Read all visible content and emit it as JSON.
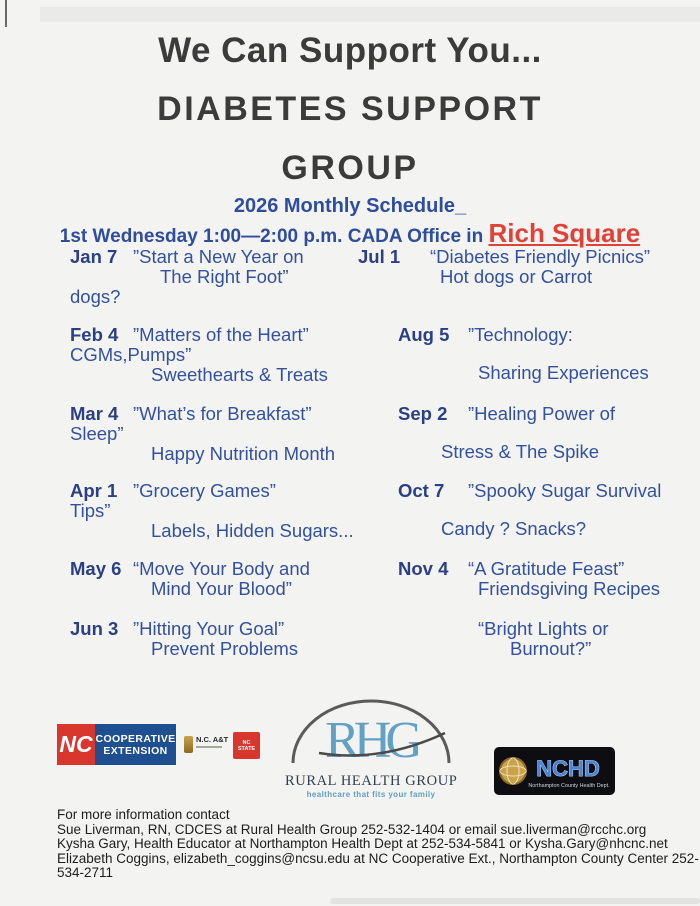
{
  "header": {
    "title_line1": "We Can Support You...",
    "title_line2": "DIABETES SUPPORT",
    "title_line3": "GROUP",
    "subtitle": "2026 Monthly Schedule_",
    "when_prefix": "1st Wednesday 1:00—2:00 p.m. CADA Office in ",
    "location": "Rich Square"
  },
  "colors": {
    "heading_text": "#3b3b3b",
    "schedule_blue": "#33519e",
    "date_blue": "#2a3f85",
    "location_red": "#df4238",
    "ncce_red": "#d9372e",
    "ncce_blue": "#1d4f91",
    "rhg_blue": "#62a0c4",
    "nchd_blue": "#4a86d8"
  },
  "schedule": {
    "left_column": [
      {
        "date": "Jan 7",
        "lines": [
          {
            "text": "”Start a New Year on",
            "style": "lead"
          },
          {
            "text": "The  Right Foot”",
            "style": "ind2"
          },
          {
            "text": "dogs?",
            "style": "hang"
          }
        ]
      },
      {
        "date": "Feb 4",
        "lines": [
          {
            "text": "”Matters of the Heart”",
            "style": "lead"
          },
          {
            "text": "CGMs,Pumps”",
            "style": "hang"
          },
          {
            "text": "Sweethearts & Treats",
            "style": "ind"
          }
        ]
      },
      {
        "date": "Mar 4",
        "lines": [
          {
            "text": "”What’s for Breakfast”",
            "style": "lead"
          },
          {
            "text": "Sleep”",
            "style": "hang"
          },
          {
            "text": "Happy Nutrition Month",
            "style": "ind"
          }
        ]
      },
      {
        "date": "Apr 1",
        "lines": [
          {
            "text": "”Grocery Games”",
            "style": "lead"
          },
          {
            "text": "Tips”",
            "style": "hang"
          },
          {
            "text": "Labels, Hidden Sugars...",
            "style": "ind"
          }
        ]
      },
      {
        "date": "May 6",
        "lines": [
          {
            "text": "“Move Your Body and",
            "style": "lead"
          },
          {
            "text": "Mind Your Blood”",
            "style": "ind"
          }
        ]
      },
      {
        "date": "Jun 3",
        "lines": [
          {
            "text": "”Hitting Your Goal”",
            "style": "lead"
          },
          {
            "text": "Prevent Problems",
            "style": "ind"
          }
        ]
      }
    ],
    "right_column": [
      {
        "date": "Jul 1",
        "lines": [
          {
            "text": "“Diabetes Friendly Picnics”",
            "style": "lead"
          },
          {
            "text": "Hot dogs or Carrot",
            "style": "ind"
          }
        ]
      },
      {
        "date": "Aug 5",
        "lines": [
          {
            "text": "”Technology:",
            "style": "lead"
          },
          {
            "text": "Sharing Experiences",
            "style": "ind gap"
          }
        ]
      },
      {
        "date": "Sep 2",
        "lines": [
          {
            "text": "”Healing Power of",
            "style": "lead"
          },
          {
            "text": "Stress & The Spike",
            "style": "back gap"
          }
        ]
      },
      {
        "date": "Oct 7",
        "lines": [
          {
            "text": "”Spooky Sugar Survival",
            "style": "lead"
          },
          {
            "text": "Candy ? Snacks?",
            "style": "back gap"
          }
        ]
      },
      {
        "date": "Nov 4",
        "lines": [
          {
            "text": "“A Gratitude Feast”",
            "style": "lead"
          },
          {
            "text": "Friendsgiving Recipes",
            "style": "ind"
          }
        ]
      },
      {
        "date": "",
        "lines": [
          {
            "text": "“Bright Lights or",
            "style": "ind"
          },
          {
            "text": "Burnout?”",
            "style": "more"
          }
        ]
      }
    ]
  },
  "logos": {
    "ncce_nc": "NC",
    "ncce_line1": "COOPERATIVE",
    "ncce_line2": "EXTENSION",
    "ncat_label": "N.C. A&T",
    "ncstate_label": "NC STATE",
    "rhg_initials": "RHG",
    "rhg_name": "RURAL HEALTH GROUP",
    "rhg_tagline": "healthcare that fits your family",
    "nchd_initials": "NCHD",
    "nchd_sub": "Northampton County Health Dept."
  },
  "footer": {
    "lines": [
      "For more information contact",
      "Sue Liverman, RN, CDCES at Rural Health Group 252-532-1404 or email sue.liverman@rcchc.org",
      "Kysha Gary, Health Educator at Northampton Health Dept at 252-534-5841 or Kysha.Gary@nhcnc.net",
      "Elizabeth Coggins, elizabeth_coggins@ncsu.edu at  NC Cooperative Ext., Northampton County Center 252-",
      "534-2711"
    ]
  }
}
